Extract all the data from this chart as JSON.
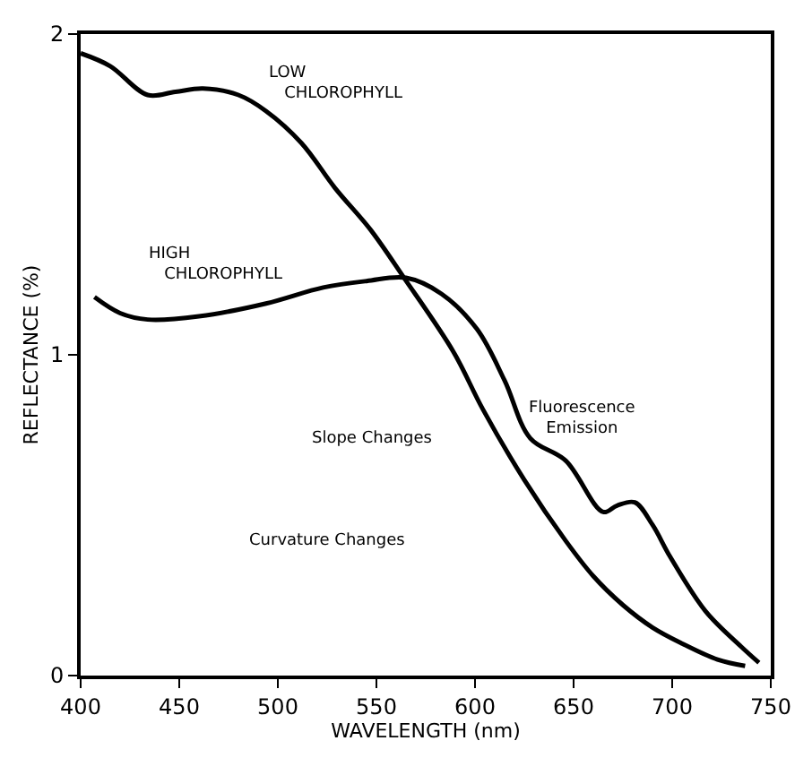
{
  "chart_data": {
    "type": "line",
    "xlabel": "WAVELENGTH (nm)",
    "ylabel": "REFLECTANCE (%)",
    "xlim": [
      400,
      750
    ],
    "ylim": [
      0,
      2
    ],
    "xticks": [
      400,
      450,
      500,
      550,
      600,
      650,
      700,
      750
    ],
    "yticks": [
      0,
      1,
      2
    ],
    "grid": false,
    "legend": false,
    "marker": "none",
    "line_style": "solid",
    "series": [
      {
        "name": "LOW CHLOROPHYLL",
        "color": "#000000",
        "x": [
          400,
          415,
          434,
          448,
          462,
          480,
          494,
          512,
          529,
          547,
          564,
          589,
          604,
          625,
          646,
          660,
          675,
          690,
          705,
          723,
          737
        ],
        "values": [
          1.94,
          1.9,
          1.81,
          1.82,
          1.83,
          1.81,
          1.76,
          1.66,
          1.52,
          1.39,
          1.24,
          1.01,
          0.83,
          0.61,
          0.42,
          0.31,
          0.22,
          0.15,
          0.1,
          0.05,
          0.03
        ]
      },
      {
        "name": "HIGH CHLOROPHYLL",
        "color": "#000000",
        "x": [
          407,
          420,
          434,
          460,
          494,
          523,
          545,
          565,
          583,
          601,
          615,
          628,
          646,
          665,
          672,
          681,
          690,
          699,
          717,
          735,
          744
        ],
        "values": [
          1.18,
          1.13,
          1.11,
          1.12,
          1.16,
          1.21,
          1.23,
          1.24,
          1.19,
          1.08,
          0.92,
          0.74,
          0.67,
          0.51,
          0.53,
          0.54,
          0.47,
          0.37,
          0.2,
          0.09,
          0.04
        ]
      }
    ],
    "annotations": [
      "Slope Changes",
      "Curvature Changes",
      "Fluorescence\nEmission"
    ]
  }
}
